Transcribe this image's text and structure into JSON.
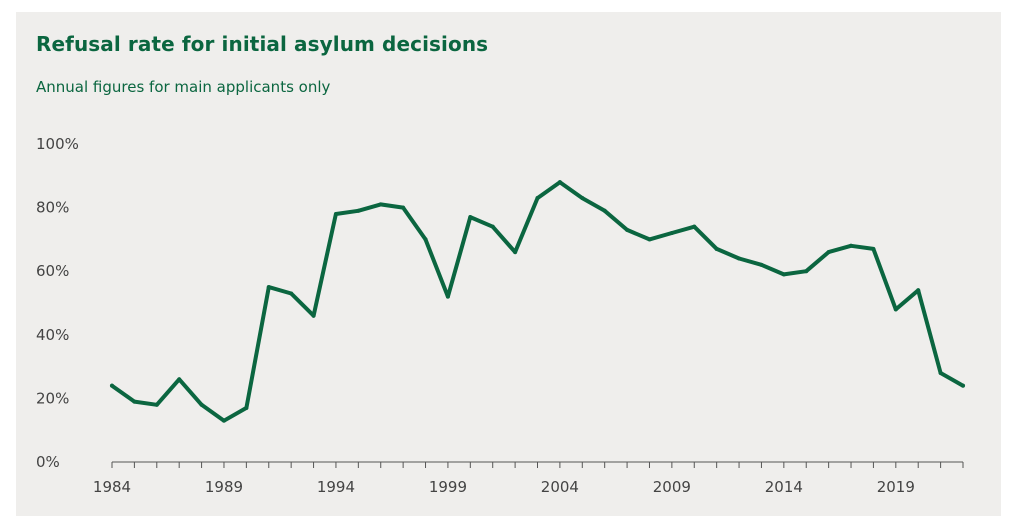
{
  "title": "Refusal rate for initial asylum decisions",
  "subtitle": "Annual figures for main applicants only",
  "colors": {
    "line": "#0b6640",
    "background": "#efeeec",
    "axis": "#555555",
    "text": "#444444"
  },
  "chart_data": {
    "type": "line",
    "title": "Refusal rate for initial asylum decisions",
    "subtitle": "Annual figures for main applicants only",
    "xlabel": "",
    "ylabel": "",
    "ylim": [
      0,
      100
    ],
    "xlim": [
      1984,
      2022
    ],
    "grid": false,
    "legend": "none",
    "y_ticks": [
      {
        "value": 0,
        "label": "0%"
      },
      {
        "value": 20,
        "label": "20%"
      },
      {
        "value": 40,
        "label": "40%"
      },
      {
        "value": 60,
        "label": "60%"
      },
      {
        "value": 80,
        "label": "80%"
      },
      {
        "value": 100,
        "label": "100%"
      }
    ],
    "x_tick_labels": [
      {
        "value": 1984,
        "label": "1984"
      },
      {
        "value": 1989,
        "label": "1989"
      },
      {
        "value": 1994,
        "label": "1994"
      },
      {
        "value": 1999,
        "label": "1999"
      },
      {
        "value": 2004,
        "label": "2004"
      },
      {
        "value": 2009,
        "label": "2009"
      },
      {
        "value": 2014,
        "label": "2014"
      },
      {
        "value": 2019,
        "label": "2019"
      }
    ],
    "x": [
      1984,
      1985,
      1986,
      1987,
      1988,
      1989,
      1990,
      1991,
      1992,
      1993,
      1994,
      1995,
      1996,
      1997,
      1998,
      1999,
      2000,
      2001,
      2002,
      2003,
      2004,
      2005,
      2006,
      2007,
      2008,
      2009,
      2010,
      2011,
      2012,
      2013,
      2014,
      2015,
      2016,
      2017,
      2018,
      2019,
      2020,
      2021,
      2022
    ],
    "series": [
      {
        "values": [
          24,
          19,
          18,
          26,
          18,
          13,
          17,
          55,
          53,
          46,
          78,
          79,
          81,
          80,
          70,
          52,
          77,
          74,
          66,
          83,
          88,
          83,
          79,
          73,
          70,
          72,
          74,
          67,
          64,
          62,
          59,
          60,
          66,
          68,
          67,
          48,
          54,
          28,
          24
        ]
      }
    ]
  }
}
